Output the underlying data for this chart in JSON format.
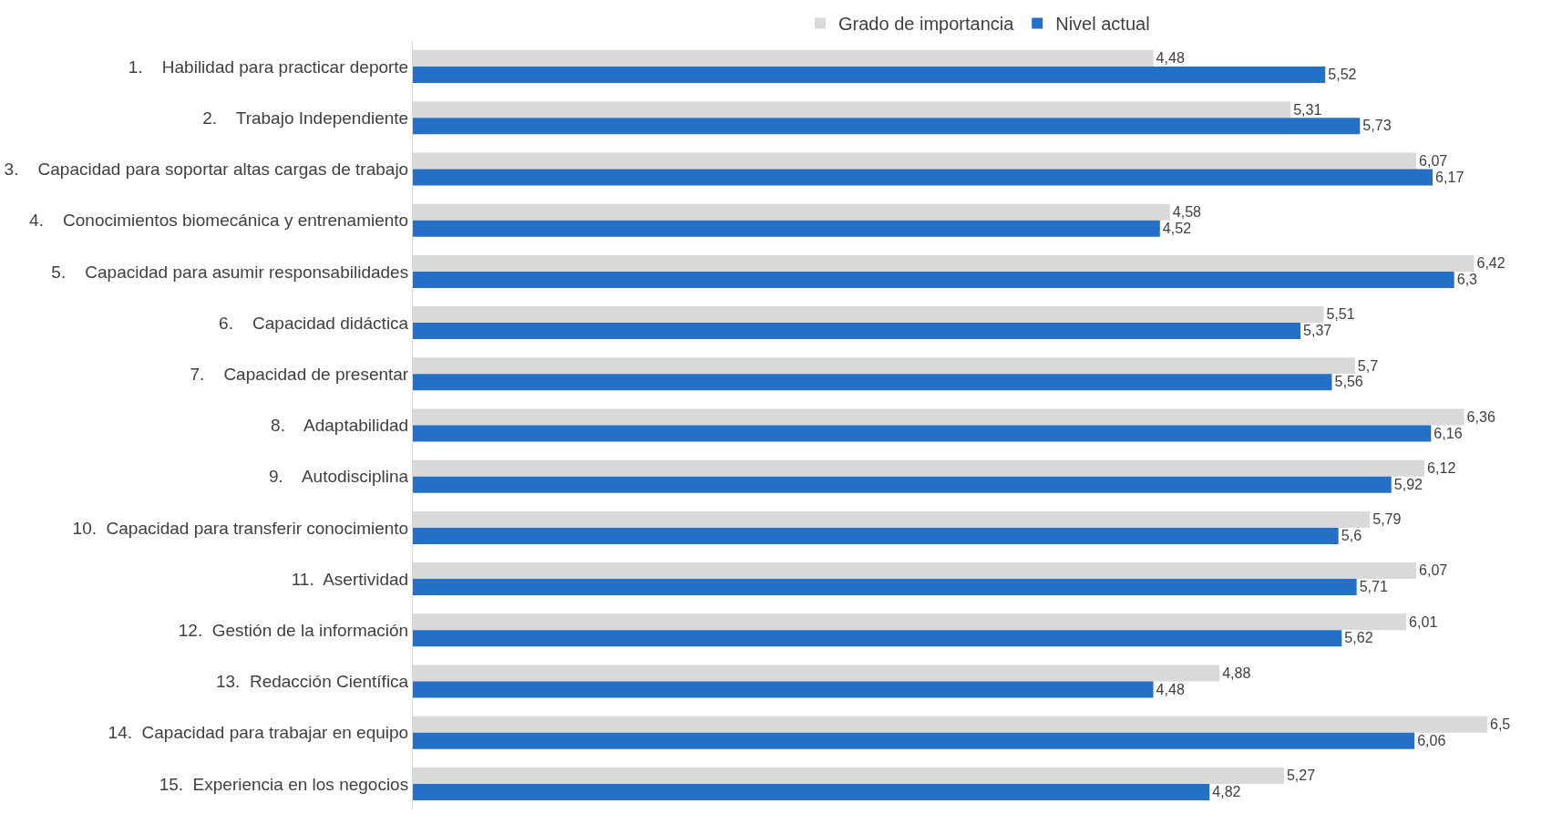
{
  "chart_data": {
    "type": "bar",
    "orientation": "horizontal",
    "categories": [
      "1.    Habilidad para practicar deporte",
      "2.    Trabajo Independiente",
      "3.    Capacidad para soportar altas cargas de trabajo",
      "4.    Conocimientos biomecánica y entrenamiento",
      "5.    Capacidad para asumir responsabilidades",
      "6.    Capacidad didáctica",
      "7.    Capacidad de presentar",
      "8.    Adaptabilidad",
      "9.    Autodisciplina",
      "10.  Capacidad para transferir conocimiento",
      "11.  Asertividad",
      "12.  Gestión de la información",
      "13.  Redacción Científica",
      "14.  Capacidad para trabajar en equipo",
      "15.  Experiencia en los negocios"
    ],
    "series": [
      {
        "name": "Grado de importancia",
        "color": "#d9d9d9",
        "values": [
          4.48,
          5.31,
          6.07,
          4.58,
          6.42,
          5.51,
          5.7,
          6.36,
          6.12,
          5.79,
          6.07,
          6.01,
          4.88,
          6.5,
          5.27
        ],
        "value_labels": [
          "4,48",
          "5,31",
          "6,07",
          "4,58",
          "6,42",
          "5,51",
          "5,7",
          "6,36",
          "6,12",
          "5,79",
          "6,07",
          "6,01",
          "4,88",
          "6,5",
          "5,27"
        ]
      },
      {
        "name": "Nivel actual",
        "color": "#2470c6",
        "values": [
          5.52,
          5.73,
          6.17,
          4.52,
          6.3,
          5.37,
          5.56,
          6.16,
          5.92,
          5.6,
          5.71,
          5.62,
          4.48,
          6.06,
          4.82
        ],
        "value_labels": [
          "5,52",
          "5,73",
          "6,17",
          "4,52",
          "6,3",
          "5,37",
          "5,56",
          "6,16",
          "5,92",
          "5,6",
          "5,71",
          "5,62",
          "4,48",
          "6,06",
          "4,82"
        ]
      }
    ],
    "legend": "top",
    "tick_labels": "y"
  }
}
